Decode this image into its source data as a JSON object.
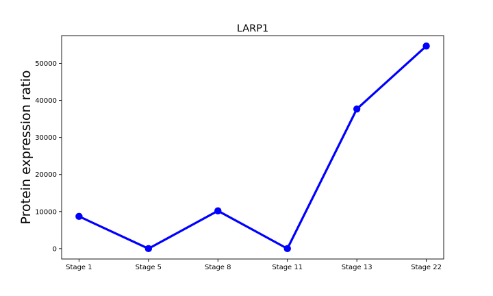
{
  "chart_data": {
    "type": "line",
    "title": "LARP1",
    "xlabel": "",
    "ylabel": "Protein expression ratio",
    "categories": [
      "Stage 1",
      "Stage 5",
      "Stage 8",
      "Stage 11",
      "Stage 13",
      "Stage 22"
    ],
    "series": [
      {
        "values": [
          8700,
          0,
          10200,
          0,
          37700,
          54700
        ],
        "color": "#0000ff",
        "marker": "circle"
      }
    ],
    "ylim": [
      -2800,
      57500
    ],
    "yticks": [
      0,
      10000,
      20000,
      30000,
      40000,
      50000
    ],
    "grid": false,
    "legend": false
  }
}
